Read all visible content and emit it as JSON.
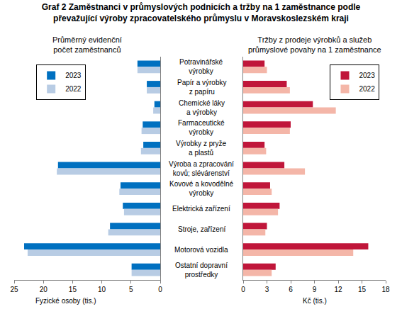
{
  "chart_data": [
    {
      "type": "bar",
      "orientation": "horizontal",
      "title": "Graf 2 Zaměstnanci v průmyslových podnicích a tržby na 1 zaměstnance podle převažující výroby zpracovatelského průmyslu v Moravskoslezském kraji",
      "subtitle": "Průměrný evidenční počet zaměstnanců",
      "xlabel": "Fyzické osoby (tis.)",
      "categories": [
        "Potravinářské výrobky",
        "Papír a výrobky z papíru",
        "Chemické láky a výrobky",
        "Farmaceutické výrobky",
        "Výrobky z pryže a plastů",
        "Výroba a zpracování kovů; slévárenství",
        "Kovové a kovodělné výrobky",
        "Elektrická zařízení",
        "Stroje, zařízení",
        "Motorová vozidla",
        "Ostatní dopravní prostředky"
      ],
      "series": [
        {
          "name": "2023",
          "color": "#0070C0",
          "values": [
            3.9,
            2.3,
            1.0,
            3.0,
            2.9,
            17.5,
            6.8,
            6.4,
            8.6,
            23.3,
            4.9
          ]
        },
        {
          "name": "2022",
          "color": "#B8CCE4",
          "values": [
            3.9,
            2.3,
            1.2,
            3.2,
            3.3,
            17.7,
            7.0,
            6.2,
            8.9,
            22.7,
            4.9
          ]
        }
      ],
      "xlim": [
        25,
        0
      ],
      "xticks": [
        25,
        20,
        15,
        10,
        5,
        0
      ],
      "legend": "upper left",
      "grid": false
    },
    {
      "type": "bar",
      "orientation": "horizontal",
      "subtitle": "Tržby z prodeje výrobků a služeb průmyslové povahy na 1 zaměstnance",
      "xlabel": "Kč (tis.)",
      "categories": [
        "Potravinářské výrobky",
        "Papír a výrobky z papíru",
        "Chemické láky a výrobky",
        "Farmaceutické výrobky",
        "Výrobky z pryže a plastů",
        "Výroba a zpracování kovů; slévárenství",
        "Kovové a kovodělné výrobky",
        "Elektrická zařízení",
        "Stroje, zařízení",
        "Motorová vozidla",
        "Ostatní dopravní prostředky"
      ],
      "series": [
        {
          "name": "2023",
          "color": "#C0163A",
          "values": [
            2.7,
            5.5,
            8.8,
            6.0,
            2.7,
            5.2,
            3.4,
            4.6,
            3.0,
            15.8,
            4.1
          ]
        },
        {
          "name": "2022",
          "color": "#F4B6A8",
          "values": [
            3.0,
            5.9,
            11.7,
            5.9,
            2.9,
            7.8,
            3.6,
            4.4,
            2.8,
            13.9,
            3.6
          ]
        }
      ],
      "xlim": [
        0,
        18
      ],
      "xticks": [
        0,
        3,
        6,
        9,
        12,
        15,
        18
      ],
      "legend": "upper right",
      "grid": false
    }
  ]
}
